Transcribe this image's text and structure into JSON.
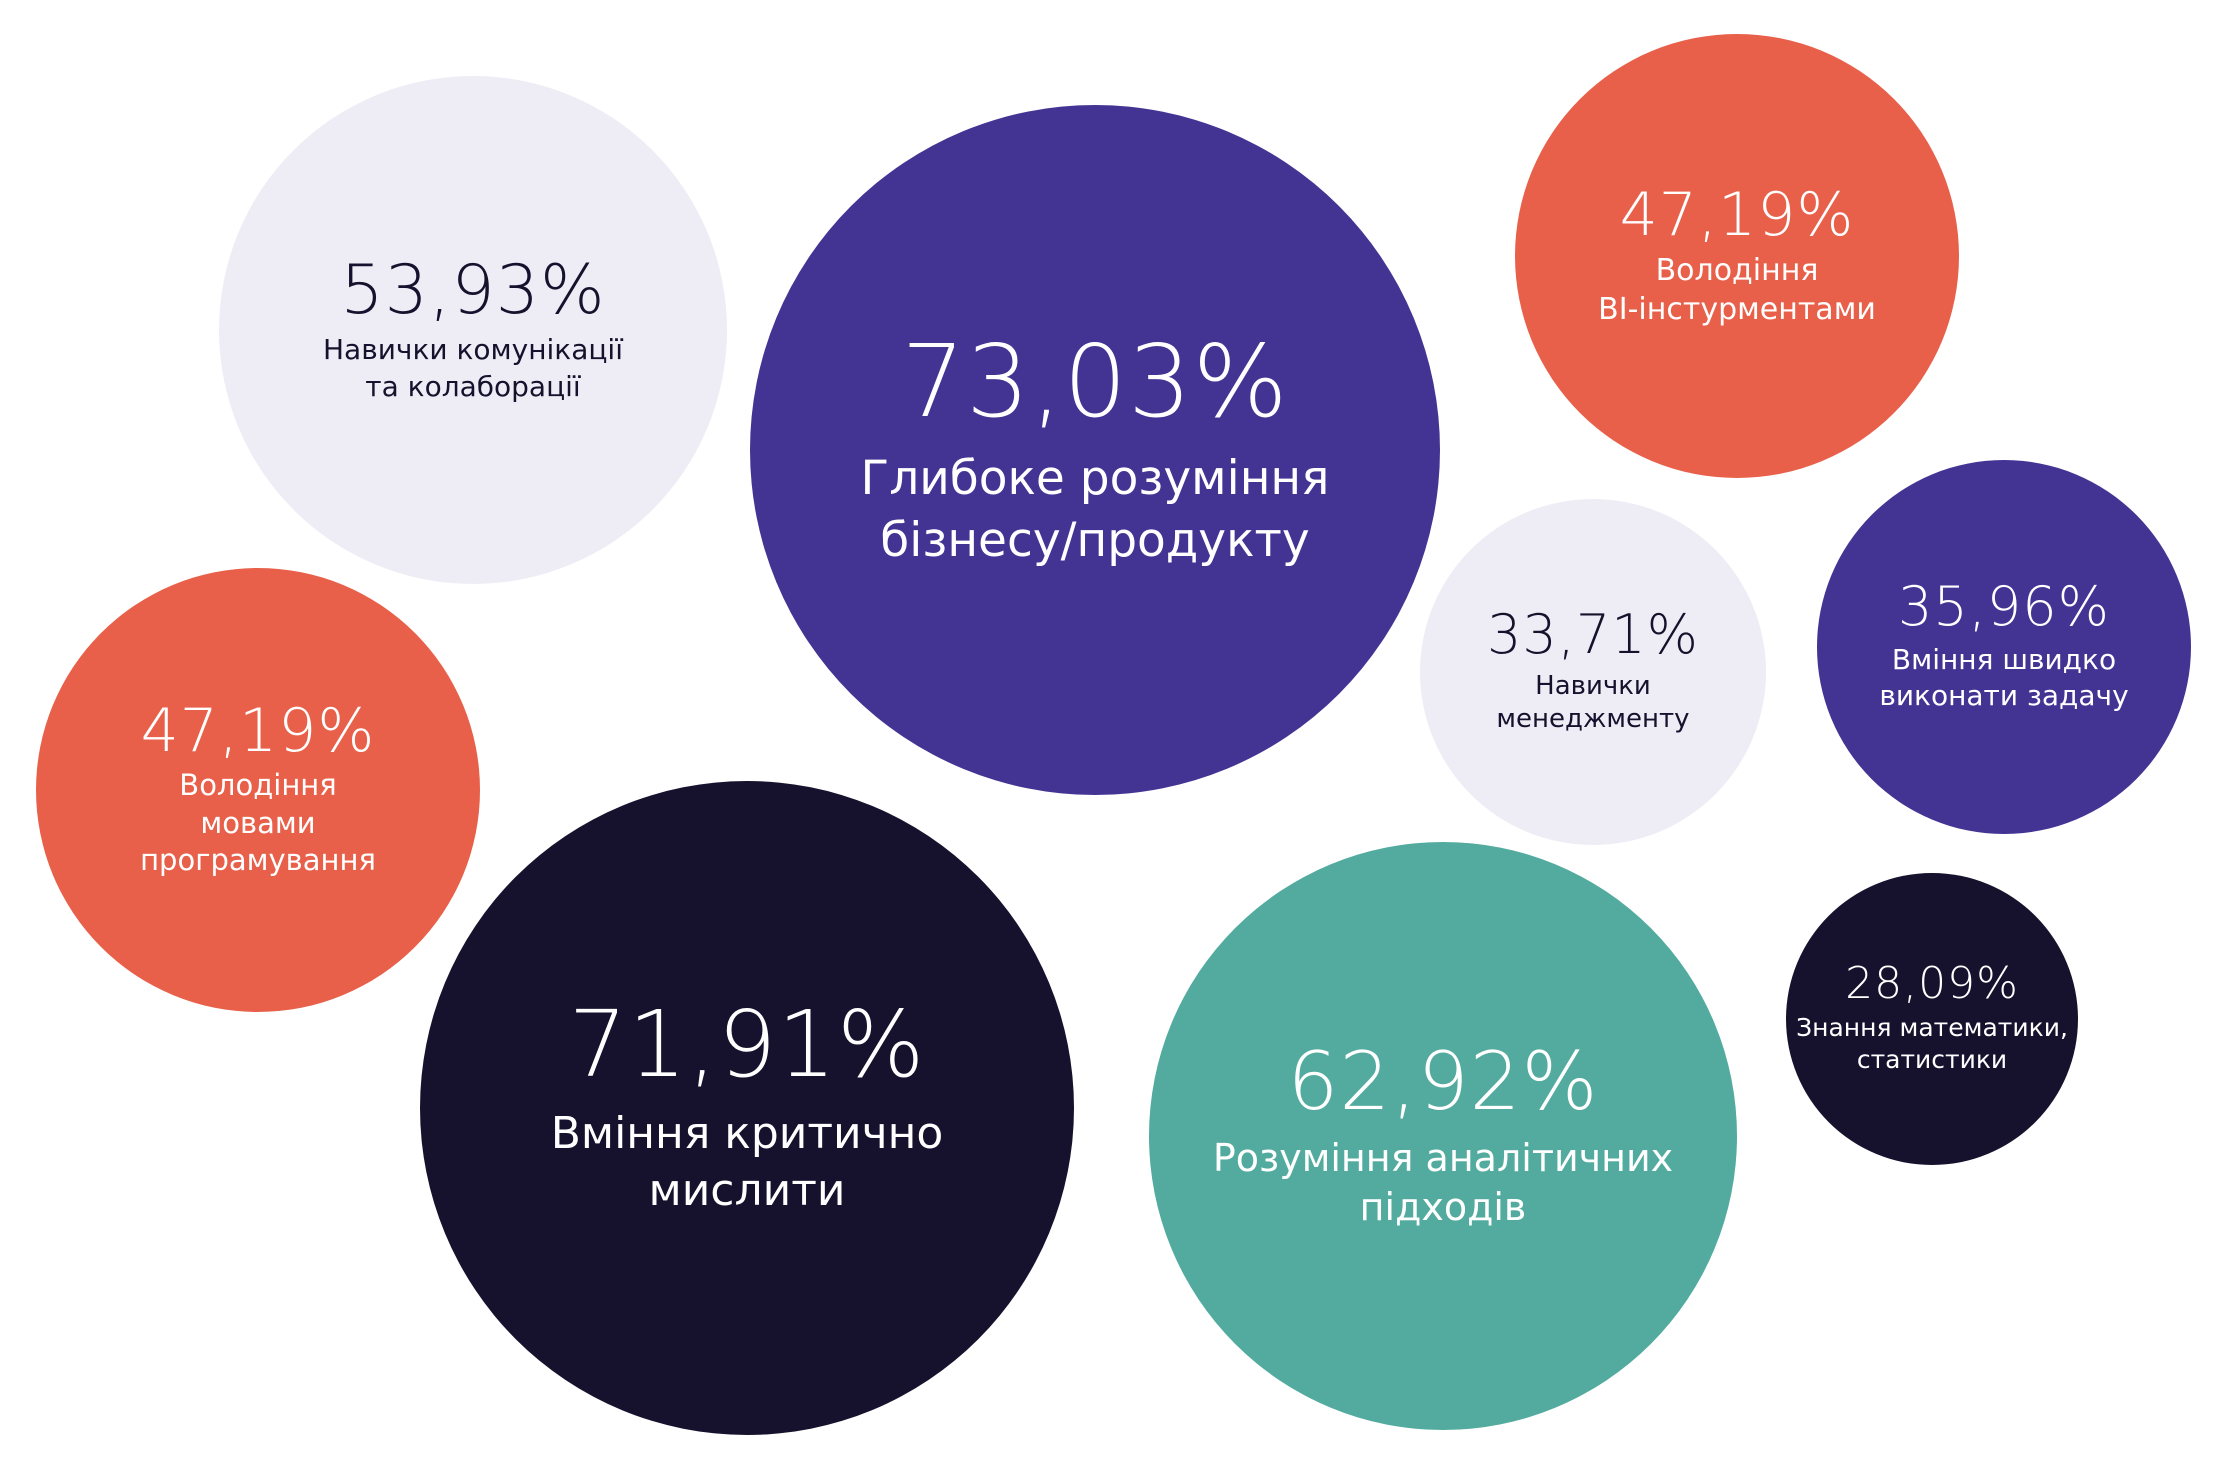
{
  "colors": {
    "light": "#eeedf5",
    "orange": "#e8604a",
    "purple": "#433494",
    "dark": "#16122d",
    "teal": "#52ab9e",
    "dark_text": "#16122d",
    "light_text": "#ffffff"
  },
  "chart_data": {
    "type": "bubble",
    "title": "",
    "items": [
      {
        "id": "business",
        "value": 73.03,
        "value_label": "73,03%",
        "label_lines": [
          "Глибоке розуміння",
          "бізнесу/продукту"
        ],
        "color": "#433494"
      },
      {
        "id": "critical",
        "value": 71.91,
        "value_label": "71,91%",
        "label_lines": [
          "Вміння критично",
          "мислити"
        ],
        "color": "#16122d"
      },
      {
        "id": "analytics",
        "value": 62.92,
        "value_label": "62,92%",
        "label_lines": [
          "Розуміння аналітичних",
          "підходів"
        ],
        "color": "#52ab9e"
      },
      {
        "id": "communication",
        "value": 53.93,
        "value_label": "53,93%",
        "label_lines": [
          "Навички комунікації",
          "та колаборації"
        ],
        "color": "#eeedf5"
      },
      {
        "id": "programming",
        "value": 47.19,
        "value_label": "47,19%",
        "label_lines": [
          "Володіння",
          "мовами",
          "програмування"
        ],
        "color": "#e8604a"
      },
      {
        "id": "bi",
        "value": 47.19,
        "value_label": "47,19%",
        "label_lines": [
          "Володіння",
          "BI-інстурментами"
        ],
        "color": "#e8604a"
      },
      {
        "id": "speed",
        "value": 35.96,
        "value_label": "35,96%",
        "label_lines": [
          "Вміння швидко",
          "виконати задачу"
        ],
        "color": "#433494"
      },
      {
        "id": "management",
        "value": 33.71,
        "value_label": "33,71%",
        "label_lines": [
          "Навички",
          "менеджменту"
        ],
        "color": "#eeedf5"
      },
      {
        "id": "math",
        "value": 28.09,
        "value_label": "28,09%",
        "label_lines": [
          "Знання математики,",
          "статистики"
        ],
        "color": "#16122d"
      }
    ]
  }
}
